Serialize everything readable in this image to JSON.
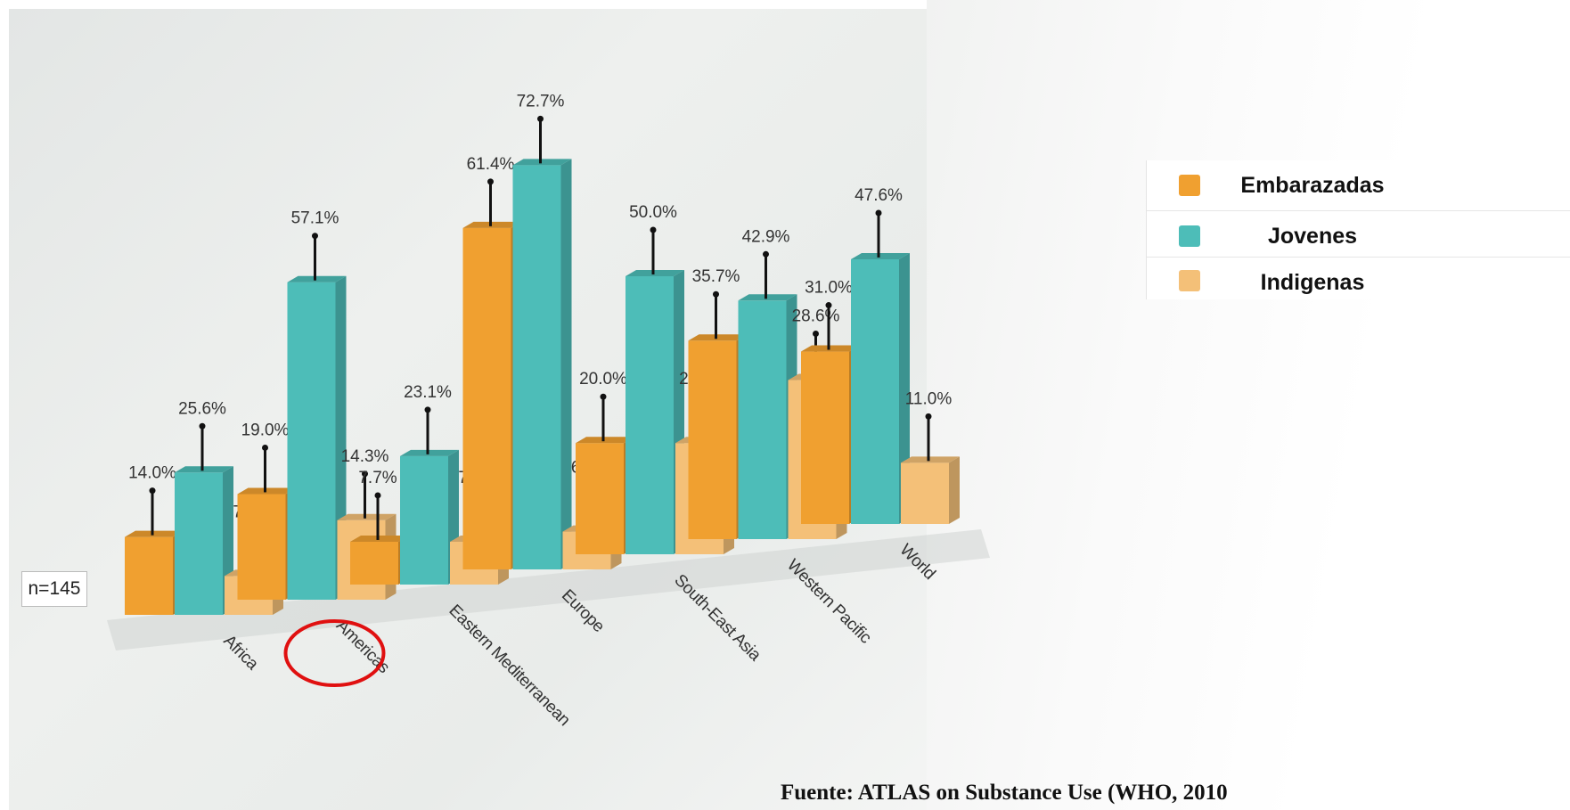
{
  "chart_data": {
    "type": "bar",
    "categories": [
      "Africa",
      "Americas",
      "Eastern Mediterranean",
      "Europe",
      "South-East Asia",
      "Western Pacific",
      "World"
    ],
    "series": [
      {
        "name": "Embarazadas",
        "values": [
          14.0,
          19.0,
          7.7,
          61.4,
          20.0,
          35.7,
          31.0
        ],
        "labels": [
          "14.0%",
          "19.0%",
          "7.7%",
          "61.4%",
          "20.0%",
          "35.7%",
          "31.0%"
        ],
        "color": "#f0a030"
      },
      {
        "name": "Jovenes",
        "values": [
          25.6,
          57.1,
          23.1,
          72.7,
          50.0,
          42.9,
          47.6
        ],
        "labels": [
          "25.6%",
          "57.1%",
          "23.1%",
          "72.7%",
          "50.0%",
          "42.9%",
          "47.6%"
        ],
        "color": "#4dbdb8"
      },
      {
        "name": "Indigenas",
        "values": [
          7.0,
          14.3,
          7.7,
          6.8,
          20.0,
          28.6,
          11.0
        ],
        "labels": [
          "7.0%",
          "14.3%",
          "7.7%",
          "6.8%",
          "20.0%",
          "28.6%",
          "11.0%"
        ],
        "color": "#f4c078"
      }
    ],
    "sample_note": "n=145",
    "highlighted_category": "Americas",
    "ylim": [
      0,
      80
    ],
    "grid": false,
    "legend_position": "right"
  },
  "source": "Fuente: ATLAS on Substance Use (WHO, 2010"
}
